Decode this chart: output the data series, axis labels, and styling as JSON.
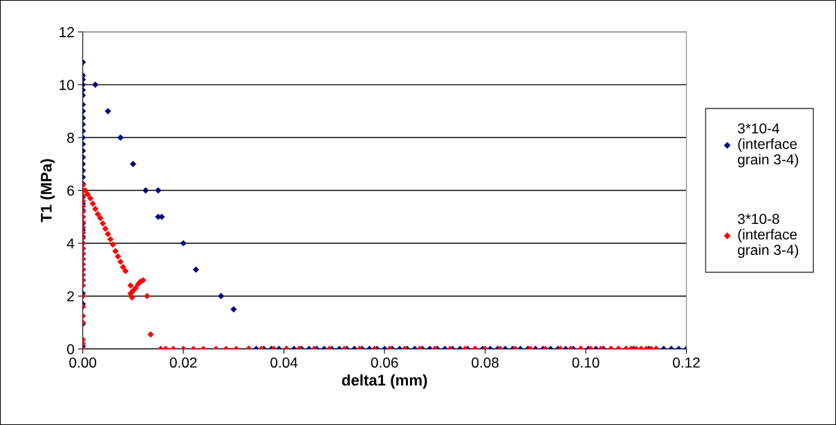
{
  "chart_data": {
    "type": "scatter",
    "xlabel": "delta1 (mm)",
    "ylabel": "T1 (MPa)",
    "xlim": [
      0,
      0.12
    ],
    "ylim": [
      0,
      12
    ],
    "xticks": [
      {
        "value": 0,
        "label": "0.00"
      },
      {
        "value": 0.02,
        "label": "0.02"
      },
      {
        "value": 0.04,
        "label": "0.04"
      },
      {
        "value": 0.06,
        "label": "0.06"
      },
      {
        "value": 0.08,
        "label": "0.08"
      },
      {
        "value": 0.1,
        "label": "0.10"
      },
      {
        "value": 0.12,
        "label": "0.12"
      }
    ],
    "yticks": [
      0,
      2,
      4,
      6,
      8,
      10,
      12
    ],
    "grid": "y",
    "legend": "right",
    "marker": "diamond",
    "series": [
      {
        "name": "3*10-4\n(interface\ngrain 3-4)",
        "color": "#000080",
        "x": [
          0,
          0,
          0,
          0,
          0,
          0,
          0,
          0,
          0,
          0,
          0,
          0,
          0,
          0,
          0,
          0,
          0,
          0,
          0,
          0,
          0,
          0,
          0,
          0,
          0,
          0,
          0,
          0,
          0,
          0,
          0,
          0,
          0,
          0,
          0,
          0,
          0,
          0,
          0,
          0.0025,
          0.005,
          0.0075,
          0.01,
          0.0125,
          0.015,
          0.015,
          0.0157,
          0.02,
          0.0225,
          0.0275,
          0.03,
          0.033,
          0.0345,
          0.036,
          0.0375,
          0.039,
          0.0405,
          0.042,
          0.0435,
          0.045,
          0.0465,
          0.048,
          0.0495,
          0.051,
          0.0525,
          0.054,
          0.0555,
          0.057,
          0.0585,
          0.06,
          0.0615,
          0.063,
          0.0645,
          0.066,
          0.0675,
          0.069,
          0.0705,
          0.072,
          0.0735,
          0.075,
          0.0765,
          0.078,
          0.0795,
          0.081,
          0.0825,
          0.084,
          0.0855,
          0.087,
          0.0885,
          0.09,
          0.0915,
          0.093,
          0.0945,
          0.096,
          0.0975,
          0.099,
          0.1005,
          0.102,
          0.1035,
          0.105,
          0.1065,
          0.108,
          0.1095,
          0.111,
          0.1125,
          0.114,
          0.1155,
          0.117,
          0.1185,
          0.12
        ],
        "values": [
          0,
          0.1,
          0.95,
          1.6,
          1.7,
          2.1,
          2.6,
          3.0,
          3.4,
          3.6,
          3.8,
          4.0,
          4.25,
          4.5,
          4.75,
          5.0,
          5.25,
          5.5,
          5.75,
          6.0,
          6.25,
          6.5,
          6.75,
          7.0,
          7.25,
          7.5,
          7.75,
          8.0,
          8.25,
          8.5,
          8.75,
          9.0,
          9.25,
          9.6,
          9.8,
          10.0,
          10.2,
          10.35,
          10.85,
          10,
          9,
          8,
          7,
          6,
          6,
          5,
          5,
          4,
          3,
          2,
          1.5,
          0,
          0,
          0,
          0,
          0,
          0,
          0,
          0,
          0,
          0,
          0,
          0,
          0,
          0,
          0,
          0,
          0,
          0,
          0,
          0,
          0,
          0,
          0,
          0,
          0,
          0,
          0,
          0,
          0,
          0,
          0,
          0,
          0,
          0,
          0,
          0,
          0,
          0,
          0,
          0,
          0,
          0,
          0,
          0,
          0,
          0,
          0,
          0,
          0,
          0,
          0,
          0,
          0,
          0,
          0,
          0,
          0,
          0,
          0
        ]
      },
      {
        "name": "3*10-8\n(interface\ngrain 3-4)",
        "color": "#ff0000",
        "x": [
          0,
          0,
          0,
          0,
          0,
          0,
          0,
          0,
          0,
          0,
          0,
          0,
          0,
          0,
          0,
          0,
          0,
          0,
          0,
          0,
          0,
          0,
          0,
          0,
          0,
          0,
          0,
          0.0005,
          0.001,
          0.0015,
          0.002,
          0.0025,
          0.003,
          0.0035,
          0.004,
          0.0045,
          0.005,
          0.0055,
          0.006,
          0.0065,
          0.007,
          0.0075,
          0.008,
          0.0085,
          0.0095,
          0.0095,
          0.0098,
          0.01,
          0.0105,
          0.011,
          0.0115,
          0.012,
          0.0128,
          0.0135,
          0.0155,
          0.0165,
          0.018,
          0.02,
          0.022,
          0.024,
          0.0265,
          0.0285,
          0.0305,
          0.033,
          0.0355,
          0.038,
          0.0405,
          0.043,
          0.046,
          0.049,
          0.052,
          0.055,
          0.058,
          0.061,
          0.064,
          0.067,
          0.07,
          0.073,
          0.076,
          0.078,
          0.08,
          0.083,
          0.086,
          0.089,
          0.092,
          0.095,
          0.097,
          0.099,
          0.101,
          0.103,
          0.105,
          0.1065,
          0.108,
          0.109,
          0.11,
          0.111,
          0.112,
          0.113,
          0.114
        ],
        "values": [
          0,
          0.2,
          0.35,
          1.0,
          1.25,
          1.6,
          2.0,
          2.4,
          2.6,
          2.8,
          3.0,
          3.2,
          3.4,
          3.6,
          3.8,
          4.0,
          4.2,
          4.4,
          4.6,
          4.8,
          5.0,
          5.2,
          5.4,
          5.6,
          5.8,
          6.0,
          6.2,
          6.0,
          5.85,
          5.7,
          5.5,
          5.3,
          5.1,
          4.95,
          4.75,
          4.55,
          4.35,
          4.15,
          3.95,
          3.7,
          3.5,
          3.3,
          3.1,
          2.95,
          2.4,
          2.1,
          1.95,
          2.2,
          2.3,
          2.45,
          2.55,
          2.6,
          2.0,
          0.55,
          0,
          0,
          0,
          0,
          0,
          0,
          0,
          0,
          0,
          0,
          0,
          0,
          0,
          0,
          0,
          0,
          0,
          0,
          0,
          0,
          0,
          0,
          0,
          0,
          0,
          0,
          0,
          0,
          0,
          0,
          0,
          0,
          0,
          0,
          0,
          0,
          0,
          0,
          0,
          0,
          0,
          0,
          0,
          0,
          0
        ]
      }
    ]
  }
}
